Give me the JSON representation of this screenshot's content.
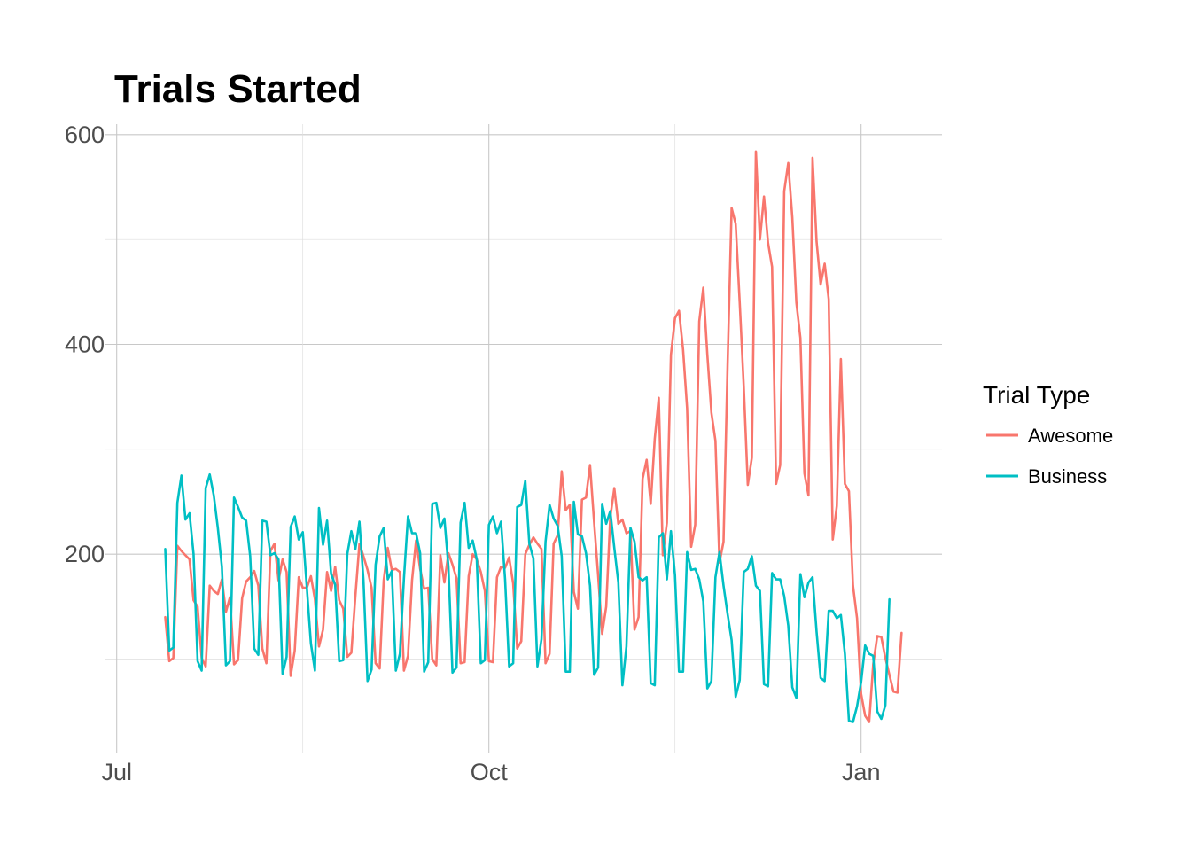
{
  "chart_data": {
    "type": "line",
    "title": "Trials Started",
    "xlabel": "",
    "ylabel": "",
    "x_ticks": [
      {
        "label": "Jul",
        "date": "2017-07-01"
      },
      {
        "label": "Oct",
        "date": "2017-10-01"
      },
      {
        "label": "Jan",
        "date": "2018-01-01"
      }
    ],
    "y_ticks": [
      200,
      400,
      600
    ],
    "xlim": [
      "2017-06-28",
      "2018-01-21"
    ],
    "ylim": [
      10,
      610
    ],
    "legend": {
      "title": "Trial Type",
      "placement": "right"
    },
    "x_start": "2017-07-13",
    "grid": true,
    "series": [
      {
        "name": "Awesome",
        "color": "#F8766D",
        "values": [
          140,
          98,
          101,
          208,
          203,
          199,
          195,
          156,
          150,
          101,
          93,
          170,
          165,
          162,
          176,
          145,
          159,
          95,
          99,
          158,
          174,
          178,
          184,
          170,
          110,
          96,
          203,
          210,
          175,
          195,
          183,
          84,
          108,
          178,
          168,
          168,
          179,
          157,
          112,
          128,
          183,
          165,
          188,
          156,
          148,
          102,
          106,
          160,
          210,
          198,
          185,
          168,
          96,
          91,
          175,
          206,
          185,
          186,
          183,
          89,
          103,
          175,
          213,
          186,
          167,
          168,
          100,
          94,
          199,
          173,
          201,
          190,
          177,
          96,
          97,
          179,
          200,
          195,
          183,
          165,
          98,
          97,
          178,
          188,
          187,
          197,
          172,
          110,
          117,
          200,
          209,
          216,
          210,
          205,
          96,
          105,
          210,
          218,
          279,
          242,
          247,
          164,
          148,
          252,
          254,
          285,
          231,
          180,
          124,
          150,
          235,
          263,
          229,
          233,
          220,
          222,
          128,
          140,
          272,
          290,
          248,
          310,
          349,
          199,
          230,
          390,
          425,
          432,
          395,
          339,
          207,
          228,
          422,
          454,
          390,
          335,
          308,
          192,
          212,
          380,
          530,
          515,
          440,
          360,
          266,
          292,
          584,
          500,
          541,
          497,
          474,
          267,
          285,
          546,
          573,
          521,
          440,
          406,
          277,
          256,
          578,
          498,
          457,
          477,
          443,
          214,
          246,
          386,
          267,
          260,
          170,
          139,
          67,
          46,
          40,
          95,
          122,
          121,
          101,
          85,
          69,
          68,
          125
        ]
      },
      {
        "name": "Business",
        "color": "#00BFC4",
        "values": [
          205,
          108,
          111,
          249,
          275,
          233,
          239,
          200,
          98,
          89,
          263,
          276,
          256,
          225,
          188,
          94,
          98,
          254,
          245,
          235,
          232,
          198,
          110,
          104,
          232,
          231,
          199,
          201,
          195,
          86,
          102,
          226,
          236,
          214,
          221,
          168,
          115,
          89,
          244,
          209,
          232,
          181,
          171,
          98,
          99,
          200,
          222,
          205,
          231,
          175,
          79,
          90,
          190,
          217,
          225,
          176,
          184,
          89,
          105,
          177,
          236,
          220,
          220,
          201,
          88,
          97,
          248,
          249,
          225,
          234,
          188,
          87,
          92,
          230,
          249,
          206,
          213,
          195,
          96,
          99,
          228,
          236,
          220,
          231,
          176,
          93,
          96,
          245,
          247,
          270,
          210,
          196,
          93,
          119,
          212,
          247,
          234,
          227,
          198,
          88,
          88,
          250,
          219,
          217,
          201,
          170,
          85,
          92,
          248,
          229,
          241,
          206,
          173,
          75,
          112,
          225,
          212,
          178,
          175,
          178,
          77,
          75,
          216,
          220,
          176,
          222,
          180,
          88,
          88,
          202,
          185,
          186,
          176,
          155,
          72,
          79,
          178,
          202,
          170,
          143,
          118,
          64,
          80,
          183,
          186,
          198,
          170,
          165,
          76,
          74,
          182,
          176,
          176,
          160,
          132,
          73,
          63,
          181,
          159,
          173,
          178,
          126,
          82,
          79,
          146,
          146,
          139,
          142,
          105,
          41,
          40,
          55,
          78,
          113,
          105,
          103,
          50,
          43,
          56,
          157
        ]
      }
    ]
  }
}
